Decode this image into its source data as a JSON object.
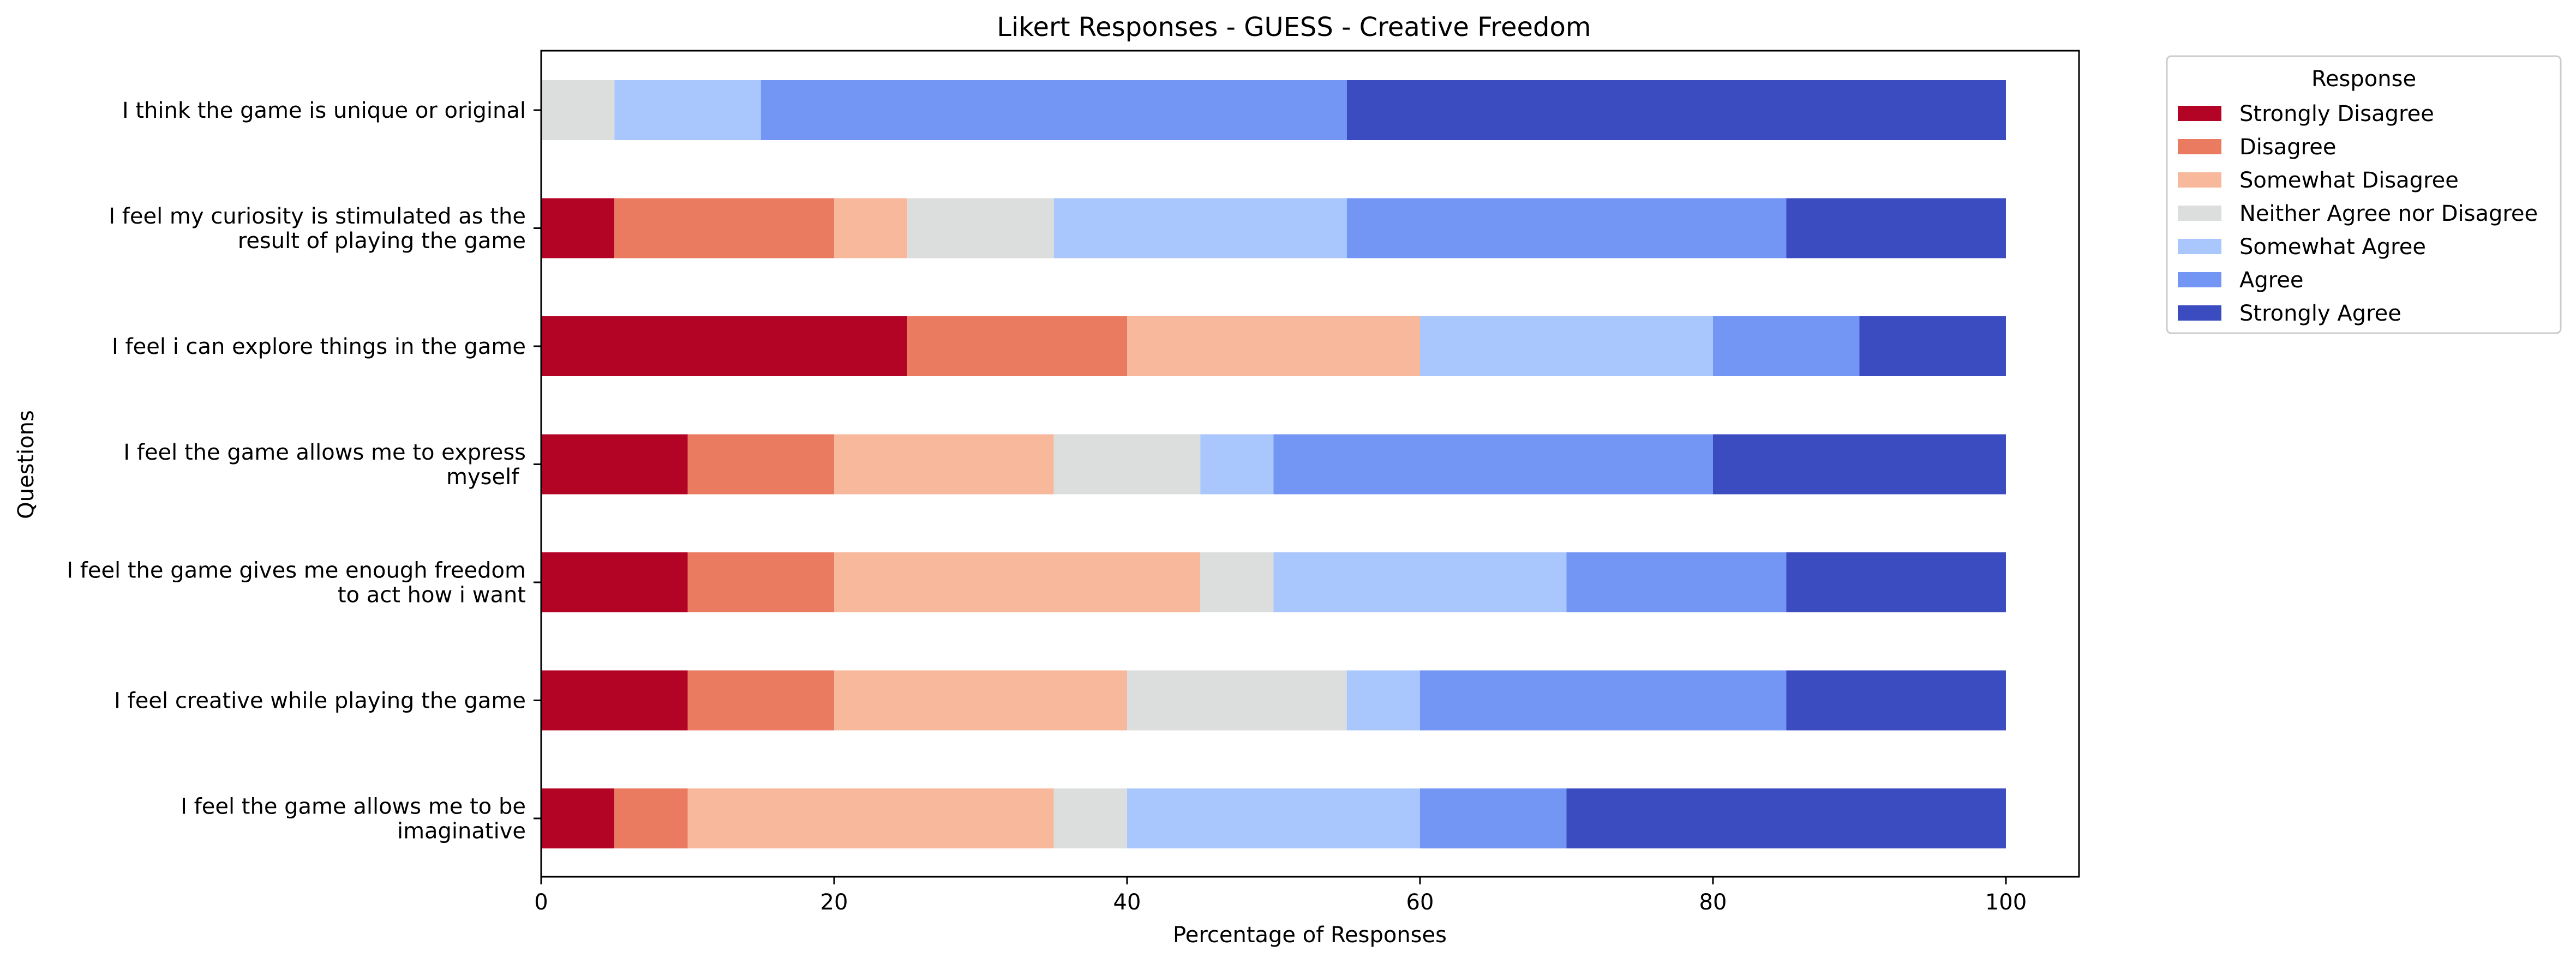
{
  "chart_data": {
    "type": "bar",
    "orientation": "horizontal",
    "stacked": true,
    "title": "Likert Responses - GUESS - Creative Freedom",
    "xlabel": "Percentage of Responses",
    "ylabel": "Questions",
    "xlim": [
      0,
      105
    ],
    "xticks": [
      "0",
      "20",
      "40",
      "60",
      "80",
      "100"
    ],
    "grid": false,
    "legend": {
      "title": "Response",
      "placement": "outside-top-right"
    },
    "categories": [
      [
        "I think the game is unique or original"
      ],
      [
        "I feel my curiosity is stimulated as the",
        "result of playing the game"
      ],
      [
        "I feel i can explore things in the game"
      ],
      [
        "I feel the game allows me to express",
        "myself "
      ],
      [
        "I feel the game gives me enough freedom",
        "to act how i want"
      ],
      [
        "I feel creative while playing the game"
      ],
      [
        "I feel the game allows me to be",
        "imaginative"
      ]
    ],
    "series": [
      {
        "name": "Strongly Disagree",
        "color": "#b40426",
        "values": [
          0,
          5,
          25,
          10,
          10,
          10,
          5
        ]
      },
      {
        "name": "Disagree",
        "color": "#ea7b60",
        "values": [
          0,
          15,
          15,
          10,
          10,
          10,
          5
        ]
      },
      {
        "name": "Somewhat Disagree",
        "color": "#f7b89c",
        "values": [
          0,
          5,
          20,
          15,
          25,
          20,
          25
        ]
      },
      {
        "name": "Neither Agree nor Disagree",
        "color": "#dcdddd",
        "values": [
          5,
          10,
          0,
          10,
          5,
          15,
          5
        ]
      },
      {
        "name": "Somewhat Agree",
        "color": "#aac7fd",
        "values": [
          10,
          20,
          20,
          5,
          20,
          5,
          20
        ]
      },
      {
        "name": "Agree",
        "color": "#7396f5",
        "values": [
          40,
          30,
          10,
          30,
          15,
          25,
          10
        ]
      },
      {
        "name": "Strongly Agree",
        "color": "#3b4cc0",
        "values": [
          45,
          15,
          10,
          20,
          15,
          15,
          30
        ]
      }
    ]
  }
}
